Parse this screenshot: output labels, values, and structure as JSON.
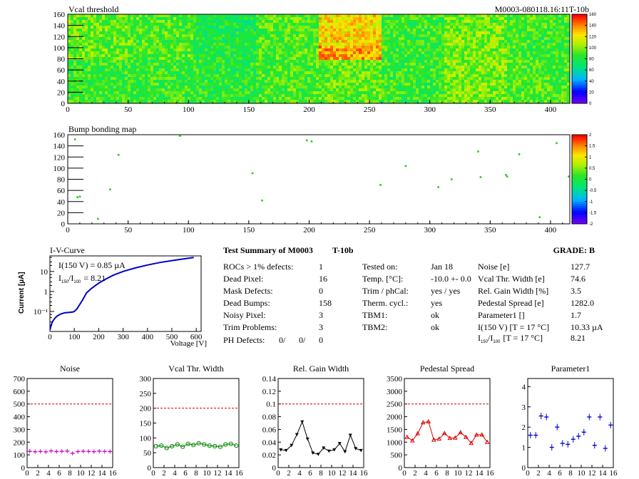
{
  "vcal_map": {
    "title": "Vcal threshold",
    "module_id": "M0003-080118.16:11T-10b",
    "x_ticks": [
      "0",
      "50",
      "100",
      "150",
      "200",
      "250",
      "300",
      "350",
      "400"
    ],
    "y_ticks": [
      "0",
      "20",
      "40",
      "60",
      "80",
      "100",
      "120",
      "140",
      "160"
    ],
    "palette_ticks": [
      "160",
      "140",
      "120",
      "100",
      "80",
      "60",
      "40",
      "20",
      "0"
    ],
    "xlim": [
      0,
      416
    ],
    "ylim": [
      0,
      160
    ],
    "zlim": [
      0,
      160
    ]
  },
  "bump_map": {
    "title": "Bump bonding map",
    "x_ticks": [
      "0",
      "50",
      "100",
      "150",
      "200",
      "250",
      "300",
      "350",
      "400"
    ],
    "y_ticks": [
      "0",
      "20",
      "40",
      "60",
      "80",
      "100",
      "120",
      "140",
      "160"
    ],
    "palette_ticks": [
      "2",
      "1.5",
      "1",
      "0.5",
      "0",
      "-0.5",
      "-1",
      "-1.5",
      "-2"
    ],
    "xlim": [
      0,
      416
    ],
    "ylim": [
      0,
      160
    ],
    "points": [
      [
        6,
        152
      ],
      [
        8,
        48
      ],
      [
        10,
        49
      ],
      [
        25,
        9
      ],
      [
        35,
        62
      ],
      [
        42,
        124
      ],
      [
        93,
        158
      ],
      [
        153,
        91
      ],
      [
        161,
        42
      ],
      [
        198,
        150
      ],
      [
        202,
        148
      ],
      [
        259,
        70
      ],
      [
        280,
        104
      ],
      [
        307,
        66
      ],
      [
        318,
        80
      ],
      [
        340,
        130
      ],
      [
        342,
        84
      ],
      [
        363,
        88
      ],
      [
        364,
        85
      ],
      [
        374,
        125
      ],
      [
        391,
        12
      ],
      [
        405,
        145
      ],
      [
        415,
        85
      ]
    ]
  },
  "iv": {
    "title": "I-V-Curve",
    "ylabel": "Current [µA]",
    "xlabel": "Voltage [V]",
    "annot1": "I(150 V) = 0.85 µA",
    "annot2_a": "I",
    "annot2_sub1": "150",
    "annot2_b": "/I",
    "annot2_sub2": "100",
    "annot2_c": "=  8.21",
    "x_ticks": [
      "0",
      "100",
      "200",
      "300",
      "400",
      "500",
      "600"
    ],
    "y_ticks": [
      "10⁻¹",
      "1",
      "10"
    ],
    "xlim": [
      0,
      620
    ],
    "curve": [
      [
        0,
        0.012
      ],
      [
        5,
        0.02
      ],
      [
        10,
        0.03
      ],
      [
        20,
        0.045
      ],
      [
        30,
        0.06
      ],
      [
        45,
        0.075
      ],
      [
        60,
        0.085
      ],
      [
        80,
        0.09
      ],
      [
        95,
        0.095
      ],
      [
        100,
        0.1
      ],
      [
        110,
        0.13
      ],
      [
        120,
        0.2
      ],
      [
        135,
        0.4
      ],
      [
        150,
        0.85
      ],
      [
        170,
        1.4
      ],
      [
        200,
        2.6
      ],
      [
        230,
        4.2
      ],
      [
        260,
        6.5
      ],
      [
        300,
        10
      ],
      [
        350,
        15
      ],
      [
        400,
        21
      ],
      [
        450,
        28
      ],
      [
        500,
        35
      ],
      [
        550,
        43
      ],
      [
        590,
        50
      ]
    ]
  },
  "summary": {
    "title": "Test Summary of M0003",
    "test": "T-10b",
    "grade_label": "GRADE:  B",
    "left": [
      {
        "label": "ROCs > 1% defects:",
        "value": "1"
      },
      {
        "label": "Dead Pixel:",
        "value": "16"
      },
      {
        "label": "Mask Defects:",
        "value": "0"
      },
      {
        "label": "Dead Bumps:",
        "value": "158"
      },
      {
        "label": "Noisy Pixel:",
        "value": "3"
      },
      {
        "label": "Trim Problems:",
        "value": "3"
      }
    ],
    "ph_label": "PH Defects:",
    "ph_values": [
      "0/",
      "0/",
      "0"
    ],
    "ph_colors": [
      "#000000",
      "#ff0000",
      "#0000cc"
    ],
    "mid": [
      {
        "label": "Tested on:",
        "value": "Jan 18"
      },
      {
        "label": "Temp. [°C]:",
        "value": "-10.0 +- 0.0"
      },
      {
        "label": "Trim / phCal:",
        "value": "yes / yes"
      },
      {
        "label": "Therm. cycl.:",
        "value": "yes"
      },
      {
        "label": "TBM1:",
        "value": "ok"
      },
      {
        "label": "TBM2:",
        "value": "ok"
      }
    ],
    "right": [
      {
        "label": "Noise [e]",
        "value": "127.7"
      },
      {
        "label": "Vcal Thr. Width [e]",
        "value": "74.6"
      },
      {
        "label": "Rel. Gain Width [%]",
        "value": "3.5"
      },
      {
        "label": "Pedestal Spread [e]",
        "value": "1282.0"
      },
      {
        "label": "Parameter1 []",
        "value": "1.7"
      },
      {
        "label": "I(150 V) [T = 17 °C]",
        "value": "10.33 µA"
      }
    ],
    "ratio_a": "I",
    "ratio_sub1": "150",
    "ratio_b": "/I",
    "ratio_sub2": "100",
    "ratio_c": "[T = 17 °C]",
    "ratio_value": "8.21"
  },
  "chart_data": [
    {
      "type": "scatter",
      "title": "Noise",
      "color": "#cc00cc",
      "marker": "cross",
      "x": [
        0,
        1,
        2,
        3,
        4,
        5,
        6,
        7,
        8,
        9,
        10,
        11,
        12,
        13,
        14,
        15
      ],
      "values": [
        128,
        125,
        127,
        124,
        131,
        126,
        128,
        130,
        112,
        126,
        128,
        127,
        125,
        129,
        127,
        126
      ],
      "yerr": 12,
      "ylim": [
        0,
        700
      ],
      "y_ticks": [
        0,
        100,
        200,
        300,
        400,
        500,
        600,
        700
      ],
      "threshold": 500,
      "x_ticks": [
        0,
        2,
        4,
        6,
        8,
        10,
        12,
        14,
        16
      ]
    },
    {
      "type": "line",
      "title": "Vcal Thr. Width",
      "color": "#008800",
      "marker": "circle",
      "x": [
        0,
        1,
        2,
        3,
        4,
        5,
        6,
        7,
        8,
        9,
        10,
        11,
        12,
        13,
        14,
        15
      ],
      "values": [
        72,
        74,
        66,
        72,
        78,
        70,
        80,
        76,
        82,
        78,
        74,
        72,
        70,
        78,
        80,
        74
      ],
      "ylim": [
        0,
        300
      ],
      "y_ticks": [
        0,
        50,
        100,
        150,
        200,
        250,
        300
      ],
      "threshold": 200,
      "x_ticks": [
        0,
        2,
        4,
        6,
        8,
        10,
        12,
        14,
        16
      ]
    },
    {
      "type": "line",
      "title": "Rel. Gain Width",
      "color": "#000000",
      "marker": "triangle-down",
      "x": [
        0,
        1,
        2,
        3,
        4,
        5,
        6,
        7,
        8,
        9,
        10,
        11,
        12,
        13,
        14,
        15
      ],
      "values": [
        0.028,
        0.027,
        0.035,
        0.052,
        0.072,
        0.045,
        0.023,
        0.021,
        0.031,
        0.026,
        0.028,
        0.038,
        0.025,
        0.051,
        0.03,
        0.027
      ],
      "ylim": [
        0,
        0.14
      ],
      "y_ticks": [
        0,
        0.02,
        0.04,
        0.06,
        0.08,
        0.1,
        0.12,
        0.14
      ],
      "threshold": 0.1,
      "x_ticks": [
        0,
        2,
        4,
        6,
        8,
        10,
        12,
        14,
        16
      ]
    },
    {
      "type": "line",
      "title": "Pedestal Spread",
      "color": "#dd0000",
      "marker": "triangle-up",
      "x": [
        0,
        1,
        2,
        3,
        4,
        5,
        6,
        7,
        8,
        9,
        10,
        11,
        12,
        13,
        14,
        15
      ],
      "values": [
        1200,
        1060,
        1340,
        1770,
        1810,
        1090,
        1130,
        1350,
        1160,
        1170,
        1380,
        1200,
        960,
        1290,
        1290,
        1000
      ],
      "ylim": [
        0,
        3500
      ],
      "y_ticks": [
        0,
        500,
        1000,
        1500,
        2000,
        2500,
        3000,
        3500
      ],
      "threshold": 2500,
      "x_ticks": [
        0,
        2,
        4,
        6,
        8,
        10,
        12,
        14,
        16
      ]
    },
    {
      "type": "scatter",
      "title": "Parameter1",
      "color": "#0000cc",
      "marker": "cross",
      "x": [
        0,
        1,
        2,
        3,
        4,
        5,
        6,
        7,
        8,
        9,
        10,
        11,
        12,
        13,
        14,
        15
      ],
      "values": [
        1.6,
        1.6,
        2.55,
        2.5,
        1.0,
        2.0,
        1.2,
        1.15,
        1.4,
        1.55,
        1.75,
        2.5,
        1.1,
        2.5,
        0.95,
        2.1
      ],
      "ylim": [
        0,
        4.4
      ],
      "y_ticks": [
        0,
        1,
        2,
        3,
        4
      ],
      "x_ticks": [
        0,
        2,
        4,
        6,
        8,
        10,
        12,
        14,
        16
      ]
    }
  ]
}
